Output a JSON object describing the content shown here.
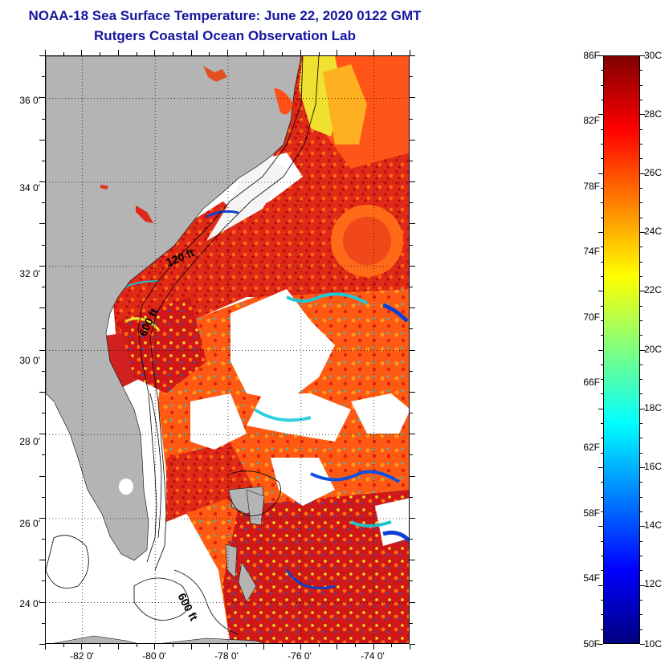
{
  "header": {
    "title": "NOAA-18 Sea Surface Temperature:  June 22, 2020 0122 GMT",
    "subtitle": "Rutgers Coastal Ocean Observation Lab"
  },
  "map": {
    "lat_range": [
      23,
      37
    ],
    "lon_range": [
      -83,
      -73
    ],
    "lat_labels": [
      "36 0'",
      "34 0'",
      "32 0'",
      "30 0'",
      "28 0'",
      "26 0'",
      "24 0'"
    ],
    "lon_labels": [
      "-82 0'",
      "-80 0'",
      "-78 0'",
      "-76 0'",
      "-74 0'"
    ],
    "contour_labels": [
      "120 ft",
      "600 ft",
      "600 ft"
    ],
    "colors": {
      "land": "#b4b4b4",
      "cloud": "#ffffff",
      "warm_water": "#e8301a",
      "hot_water": "#c81010",
      "orange_water": "#ff7a10",
      "yellow_water": "#f0e030",
      "cyan_water": "#20d0d8",
      "blue_water": "#1040d0"
    }
  },
  "colorbar": {
    "fahrenheit_labels": [
      "86F",
      "82F",
      "78F",
      "74F",
      "70F",
      "66F",
      "62F",
      "58F",
      "54F",
      "50F"
    ],
    "celsius_labels": [
      "30C",
      "28C",
      "26C",
      "24C",
      "22C",
      "20C",
      "18C",
      "16C",
      "14C",
      "12C",
      "10C"
    ],
    "range_c": [
      10,
      30
    ],
    "gradient": [
      "#000080",
      "#0000ff",
      "#0080ff",
      "#00ffff",
      "#80ff80",
      "#ffff00",
      "#ff8000",
      "#ff0000",
      "#800000"
    ]
  }
}
